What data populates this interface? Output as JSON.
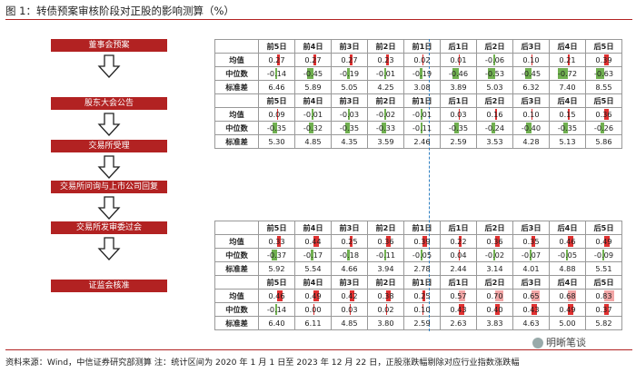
{
  "title": "图 1：转债预案审核阶段对正股的影响测算（%）",
  "flow": [
    "董事会预案",
    "股东大会公告",
    "交易所受理",
    "交易所问询与上市公司回复",
    "交易所发审委过会",
    "证监会核准"
  ],
  "columns": [
    "前5日",
    "前4日",
    "前3日",
    "前2日",
    "前1日",
    "后1日",
    "后2日",
    "后3日",
    "后4日",
    "后5日"
  ],
  "top_table": {
    "block1": [
      {
        "label": "均值",
        "values": [
          "0.27",
          "0.27",
          "0.27",
          "0.23",
          "0.02",
          "0.01",
          "-0.06",
          "0.10",
          "0.21",
          "0.39"
        ],
        "num": [
          0.27,
          0.27,
          0.27,
          0.23,
          0.02,
          0.01,
          -0.06,
          0.1,
          0.21,
          0.39
        ]
      },
      {
        "label": "中位数",
        "values": [
          "-0.14",
          "-0.45",
          "-0.19",
          "-0.01",
          "-0.19",
          "-0.46",
          "-0.53",
          "-0.45",
          "-0.72",
          "-0.63"
        ],
        "num": [
          -0.14,
          -0.45,
          -0.19,
          -0.01,
          -0.19,
          -0.46,
          -0.53,
          -0.45,
          -0.72,
          -0.63
        ]
      },
      {
        "label": "标准差",
        "values": [
          "6.46",
          "5.89",
          "5.05",
          "4.25",
          "3.08",
          "3.89",
          "5.03",
          "6.32",
          "7.40",
          "8.55"
        ]
      }
    ],
    "block2": [
      {
        "label": "均值",
        "values": [
          "0.09",
          "-0.01",
          "-0.03",
          "-0.02",
          "-0.01",
          "0.03",
          "0.16",
          "0.10",
          "0.15",
          "0.36"
        ],
        "num": [
          0.09,
          -0.01,
          -0.03,
          -0.02,
          -0.01,
          0.03,
          0.16,
          0.1,
          0.15,
          0.36
        ]
      },
      {
        "label": "中位数",
        "values": [
          "-0.35",
          "-0.32",
          "-0.35",
          "-0.33",
          "-0.11",
          "-0.35",
          "-0.24",
          "-0.40",
          "-0.35",
          "-0.26"
        ],
        "num": [
          -0.35,
          -0.32,
          -0.35,
          -0.33,
          -0.11,
          -0.35,
          -0.24,
          -0.4,
          -0.35,
          -0.26
        ]
      },
      {
        "label": "标准差",
        "values": [
          "5.30",
          "4.85",
          "4.35",
          "3.59",
          "2.46",
          "2.59",
          "3.53",
          "4.28",
          "5.13",
          "5.86"
        ]
      }
    ]
  },
  "bottom_table": {
    "block1": [
      {
        "label": "均值",
        "values": [
          "0.33",
          "0.44",
          "0.25",
          "0.36",
          "0.39",
          "0.22",
          "0.36",
          "0.35",
          "0.46",
          "0.49"
        ],
        "num": [
          0.33,
          0.44,
          0.25,
          0.36,
          0.39,
          0.22,
          0.36,
          0.35,
          0.46,
          0.49
        ]
      },
      {
        "label": "中位数",
        "values": [
          "-0.37",
          "-0.17",
          "-0.18",
          "-0.11",
          "-0.05",
          "0.04",
          "-0.02",
          "-0.07",
          "-0.05",
          "-0.09"
        ],
        "num": [
          -0.37,
          -0.17,
          -0.18,
          -0.11,
          -0.05,
          0.04,
          -0.02,
          -0.07,
          -0.05,
          -0.09
        ]
      },
      {
        "label": "标准差",
        "values": [
          "5.92",
          "5.54",
          "4.66",
          "3.94",
          "2.78",
          "2.44",
          "3.14",
          "4.01",
          "4.88",
          "5.51"
        ]
      }
    ],
    "block2": [
      {
        "label": "均值",
        "values": [
          "0.46",
          "0.49",
          "0.42",
          "0.38",
          "0.25",
          "0.57",
          "0.70",
          "0.65",
          "0.68",
          "0.83"
        ],
        "num": [
          0.46,
          0.49,
          0.42,
          0.38,
          0.25,
          0.57,
          0.7,
          0.65,
          0.68,
          0.83
        ]
      },
      {
        "label": "中位数",
        "values": [
          "-0.14",
          "0.00",
          "0.03",
          "0.02",
          "0.10",
          "0.43",
          "0.40",
          "0.43",
          "0.49",
          "0.37"
        ],
        "num": [
          -0.14,
          0.0,
          0.03,
          0.02,
          0.1,
          0.43,
          0.4,
          0.43,
          0.49,
          0.37
        ]
      },
      {
        "label": "标准差",
        "values": [
          "6.40",
          "6.11",
          "4.85",
          "3.80",
          "2.59",
          "2.63",
          "3.83",
          "4.63",
          "5.00",
          "5.82"
        ]
      }
    ]
  },
  "source": "资料来源：Wind，中信证券研究部测算  注：统计区间为 2020 年 1 月 1 日至 2023 年 12 月 22 日，正股涨跌幅剔除对应行业指数涨跌幅",
  "logo": "明晰笔谈",
  "colors": {
    "accent": "#b22222",
    "pos_bar": "#e03030",
    "neg_bar": "#70b050",
    "divider": "#2e7fc1"
  }
}
